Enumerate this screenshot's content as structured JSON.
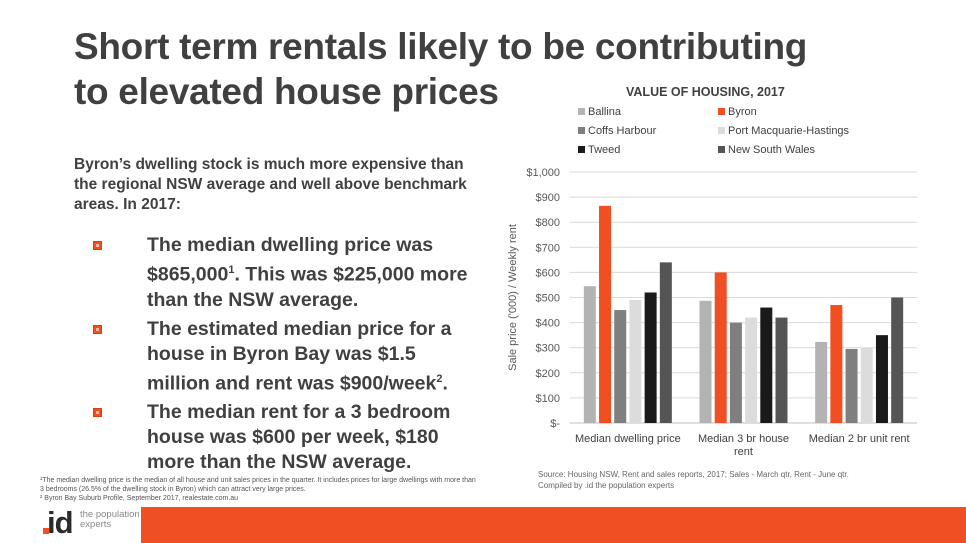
{
  "slide": {
    "title": "Short term rentals likely to be contributing to elevated house prices",
    "intro": "Byron’s dwelling stock is much more expensive than the regional NSW average and well above benchmark areas. In 2017:",
    "bullets": [
      {
        "pre": "The median dwelling price was $865,000",
        "sup": "1",
        "post": ". This was $225,000 more than the NSW average."
      },
      {
        "pre": "The estimated median price for a house in Byron Bay was $1.5 million and rent was $900/week",
        "sup": "2",
        "post": "."
      },
      {
        "pre": "The median rent for a 3 bedroom house was $600 per week, $180 more than the NSW average.",
        "sup": "",
        "post": ""
      }
    ],
    "footnotes": [
      "¹The median dwelling price is the median of all house and unit sales prices in the quarter. It includes prices for large dwellings with more than 3 bedrooms (26.5% of the dwelling stock in Byron) which can attract very large prices.",
      "² Byron Bay Suburb Profile, September 2017, realestate.com.au"
    ],
    "source_line1": "Source: Housing NSW, Rent and sales reports, 2017; Sales - March qtr, Rent - June qtr.",
    "source_line2": "Compiled by .id the population experts",
    "logo_text": ".id",
    "logo_tagline": "the population experts",
    "accent_color": "#f04e23"
  },
  "chart_data": {
    "type": "bar",
    "title": "VALUE OF HOUSING, 2017",
    "ylabel": "Sale price ('000) / Weekly rent",
    "xlabel": "",
    "ylim": [
      0,
      1000
    ],
    "yticks": [
      0,
      100,
      200,
      300,
      400,
      500,
      600,
      700,
      800,
      900,
      1000
    ],
    "ytick_labels": [
      "$-",
      "$100",
      "$200",
      "$300",
      "$400",
      "$500",
      "$600",
      "$700",
      "$800",
      "$900",
      "$1,000"
    ],
    "grid": true,
    "legend_position": "top",
    "categories": [
      "Median dwelling price",
      "Median 3 br house rent",
      "Median 2 br unit rent"
    ],
    "series": [
      {
        "name": "Ballina",
        "color": "#b3b3b3",
        "values": [
          545,
          487,
          323
        ]
      },
      {
        "name": "Byron",
        "color": "#f04e23",
        "values": [
          865,
          600,
          470
        ]
      },
      {
        "name": "Coffs Harbour",
        "color": "#7f7f7f",
        "values": [
          450,
          400,
          295
        ]
      },
      {
        "name": "Port Macquarie-Hastings",
        "color": "#dcdcdc",
        "values": [
          490,
          420,
          300
        ]
      },
      {
        "name": "Tweed",
        "color": "#1a1a1a",
        "values": [
          520,
          460,
          350
        ]
      },
      {
        "name": "New South Wales",
        "color": "#555555",
        "values": [
          640,
          420,
          500
        ]
      }
    ]
  }
}
